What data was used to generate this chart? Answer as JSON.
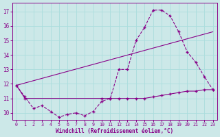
{
  "xlabel": "Windchill (Refroidissement éolien,°C)",
  "bg_color": "#cce8e8",
  "line_color": "#880088",
  "grid_color": "#aadddd",
  "xlim_min": -0.5,
  "xlim_max": 23.5,
  "ylim_min": 9.5,
  "ylim_max": 17.6,
  "yticks": [
    10,
    11,
    12,
    13,
    14,
    15,
    16,
    17
  ],
  "xticks": [
    0,
    1,
    2,
    3,
    4,
    5,
    6,
    7,
    8,
    9,
    10,
    11,
    12,
    13,
    14,
    15,
    16,
    17,
    18,
    19,
    20,
    21,
    22,
    23
  ],
  "line1_x": [
    0,
    1,
    2,
    3,
    4,
    5,
    6,
    7,
    8,
    9,
    10,
    11,
    12,
    13,
    14,
    15,
    16,
    17,
    18,
    19,
    20,
    21,
    22,
    23
  ],
  "line1_y": [
    11.9,
    11.1,
    10.3,
    10.5,
    10.1,
    9.7,
    9.9,
    10.0,
    9.8,
    10.1,
    10.8,
    11.0,
    13.0,
    13.0,
    15.0,
    15.9,
    17.1,
    17.1,
    16.7,
    15.6,
    14.2,
    13.5,
    12.5,
    11.6
  ],
  "line2_x": [
    0,
    23
  ],
  "line2_y": [
    11.9,
    15.6
  ],
  "line3_x": [
    0,
    1,
    10,
    11,
    12,
    13,
    14,
    15,
    16,
    17,
    18,
    19,
    20,
    21,
    22,
    23
  ],
  "line3_y": [
    11.9,
    11.0,
    11.0,
    11.0,
    11.0,
    11.0,
    11.0,
    11.0,
    11.1,
    11.2,
    11.3,
    11.4,
    11.5,
    11.5,
    11.6,
    11.6
  ]
}
